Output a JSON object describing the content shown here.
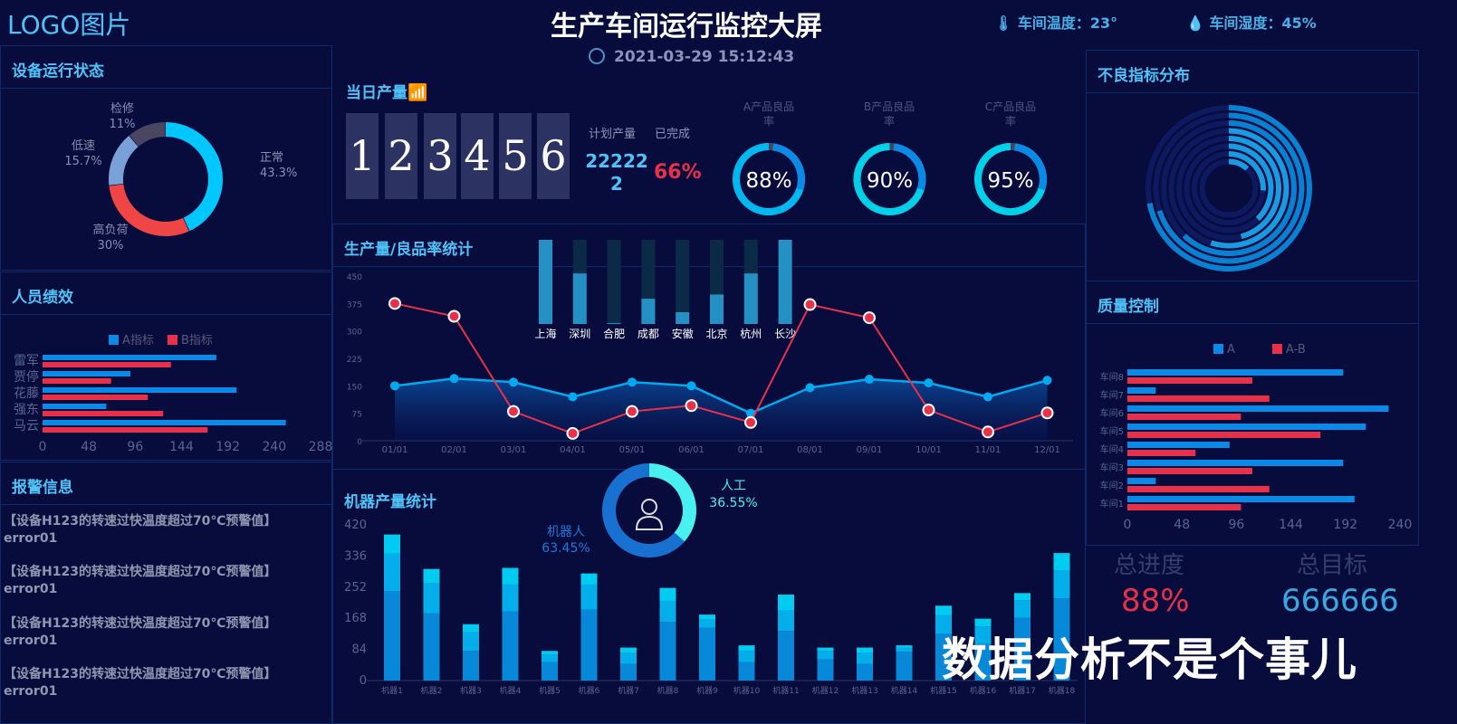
{
  "header": {
    "logo": "LOGO图片",
    "title": "生产车间运行监控大屏",
    "temperature": "车间温度：23°",
    "humidity": "车间湿度：45%",
    "datetime": "2021-03-29 15:12:43"
  },
  "panels": {
    "device_status": "设备运行状态",
    "staff": "人员绩效",
    "alarm": "报警信息",
    "daily": "当日产量",
    "production": "生产量/良品率统计",
    "machine": "机器产量统计",
    "defect": "不良指标分布",
    "quality": "质量控制"
  },
  "daily": {
    "digits": [
      "1",
      "2",
      "3",
      "4",
      "5",
      "6"
    ],
    "plan_label": "计划产量",
    "done_label": "已完成",
    "plan_value_line1": "22222",
    "plan_value_line2": "2",
    "done_value": "66%"
  },
  "gauges": [
    {
      "label1": "A产品良品",
      "label2": "率",
      "value": 88,
      "text": "88%"
    },
    {
      "label1": "B产品良品",
      "label2": "率",
      "value": 90,
      "text": "90%"
    },
    {
      "label1": "C产品良品",
      "label2": "率",
      "value": 95,
      "text": "95%"
    }
  ],
  "alarms": [
    {
      "msg": "【设备H123的转速过快温度超过70℃预警值】",
      "code": "error01"
    },
    {
      "msg": "【设备H123的转速过快温度超过70℃预警值】",
      "code": "error01"
    },
    {
      "msg": "【设备H123的转速过快温度超过70℃预警值】",
      "code": "error01"
    },
    {
      "msg": "【设备H123的转速过快温度超过70℃预警值】",
      "code": "error01"
    }
  ],
  "summary": {
    "progress_label": "总进度",
    "progress_value": "88%",
    "target_label": "总目标",
    "target_value": "666666"
  },
  "watermark": "数据分析不是个事儿",
  "colors": {
    "accent": "#4fc3f7",
    "red": "#e8304a",
    "blue": "#0a8ae6",
    "cyan": "#00c8f0"
  },
  "icons": {
    "temperature": "thermometer-icon",
    "humidity": "droplets-icon",
    "clock": "clock-icon",
    "daily": "chart-trend-icon",
    "person": "user-icon"
  },
  "chart_data": [
    {
      "id": "device",
      "type": "pie",
      "donut": true,
      "slices": [
        {
          "name": "正常",
          "value": 43.3,
          "label": "43.3%",
          "color": "#00c8ff"
        },
        {
          "name": "高负荷",
          "value": 30,
          "label": "30%",
          "color": "#f04545"
        },
        {
          "name": "低速",
          "value": 15.7,
          "label": "15.7%",
          "color": "#7aa0d8"
        },
        {
          "name": "检修",
          "value": 11,
          "label": "11%",
          "color": "#4a4560"
        }
      ]
    },
    {
      "id": "staff",
      "type": "bar",
      "orientation": "horizontal",
      "categories": [
        "雷军",
        "贾停",
        "花藤",
        "强东",
        "马云"
      ],
      "series": [
        {
          "name": "A指标",
          "values": [
            180,
            91,
            201,
            66,
            252
          ],
          "color": "#0a8ae6"
        },
        {
          "name": "B指标",
          "values": [
            133,
            71,
            109,
            125,
            171
          ],
          "color": "#e8304a"
        }
      ],
      "xlim": [
        0,
        288
      ],
      "ticks": [
        "0",
        "48",
        "96",
        "144",
        "192",
        "240",
        "288"
      ],
      "legend": "top"
    },
    {
      "id": "production",
      "type": "line",
      "categories": [
        "01/01",
        "02/01",
        "03/01",
        "04/01",
        "05/01",
        "06/01",
        "07/01",
        "08/01",
        "09/01",
        "10/01",
        "11/01",
        "12/01"
      ],
      "series": [
        {
          "values": [
            150,
            170,
            160,
            120,
            160,
            150,
            75,
            145,
            168,
            158,
            120,
            165
          ],
          "color": "#00aaf0",
          "area": true
        },
        {
          "values": [
            375,
            340,
            80,
            20,
            80,
            96,
            50,
            372,
            336,
            84,
            24,
            76
          ],
          "color": "#e8304a"
        }
      ],
      "ylim": [
        0,
        450
      ],
      "yticks": [
        "0",
        "75",
        "150",
        "225",
        "300",
        "375",
        "450"
      ]
    },
    {
      "id": "city",
      "type": "bar",
      "categories": [
        "上海",
        "深圳",
        "合肥",
        "成都",
        "安徽",
        "北京",
        "杭州",
        "长沙"
      ],
      "fill_percent": [
        100,
        60,
        1,
        30,
        14,
        35,
        60,
        100
      ]
    },
    {
      "id": "machine",
      "type": "bar",
      "stacked": true,
      "categories": [
        "机器1",
        "机器2",
        "机器3",
        "机器4",
        "机器5",
        "机器6",
        "机器7",
        "机器8",
        "机器9",
        "机器10",
        "机器11",
        "机器12",
        "机器13",
        "机器14",
        "机器15",
        "机器16",
        "机器17",
        "机器18"
      ],
      "series": [
        {
          "values": [
            241,
            181,
            80,
            186,
            50,
            191,
            45,
            158,
            142,
            50,
            134,
            57,
            45,
            78,
            126,
            98,
            169,
            222
          ],
          "color": "#0788d8"
        },
        {
          "values": [
            102,
            81,
            50,
            73,
            20,
            68,
            29,
            57,
            23,
            30,
            55,
            23,
            29,
            11,
            51,
            48,
            48,
            74
          ],
          "color": "#03aeea"
        },
        {
          "values": [
            51,
            39,
            22,
            45,
            10,
            30,
            15,
            35,
            13,
            15,
            43,
            9,
            15,
            6,
            25,
            21,
            19,
            48
          ],
          "color": "#00ccf2"
        }
      ],
      "ylim": [
        0,
        420
      ],
      "yticks": [
        "0",
        "84",
        "168",
        "252",
        "336",
        "420"
      ]
    },
    {
      "id": "worker_pie",
      "type": "pie",
      "donut": true,
      "slices": [
        {
          "name": "人工",
          "value": 36.55,
          "label": "36.55%",
          "color": "#48f0f0"
        },
        {
          "name": "机器人",
          "value": 63.45,
          "label": "63.45%",
          "color": "#1870d0"
        }
      ]
    },
    {
      "id": "defect",
      "type": "bar",
      "polar": true,
      "values_percent": [
        72,
        70,
        62,
        55,
        46,
        38,
        26,
        12
      ]
    },
    {
      "id": "quality",
      "type": "bar",
      "orientation": "horizontal",
      "categories": [
        "车间8",
        "车间7",
        "车间6",
        "车间5",
        "车间4",
        "车间3",
        "车间2",
        "车间1"
      ],
      "series": [
        {
          "name": "A",
          "values": [
            190,
            25,
            230,
            210,
            90,
            190,
            25,
            200
          ],
          "color": "#0a8ae6"
        },
        {
          "name": "A-B",
          "values": [
            110,
            125,
            100,
            170,
            60,
            110,
            125,
            100
          ],
          "color": "#e8304a"
        }
      ],
      "xlim": [
        0,
        240
      ],
      "ticks": [
        "0",
        "48",
        "96",
        "144",
        "192",
        "240"
      ],
      "legend": "top"
    }
  ]
}
